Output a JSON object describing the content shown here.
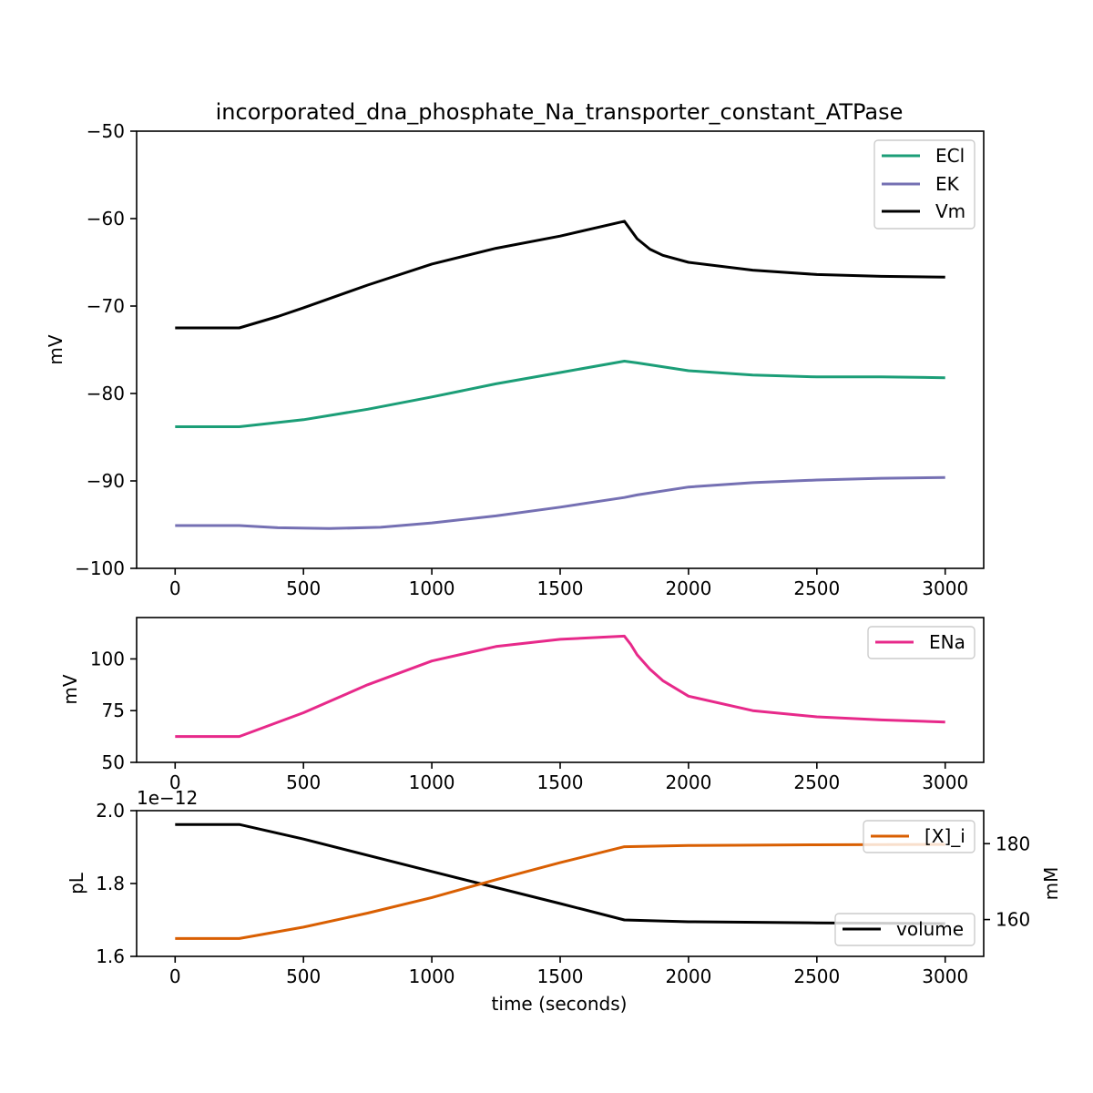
{
  "chart_data": [
    {
      "type": "line",
      "title": "incorporated_dna_phosphate_Na_transporter_constant_ATPase",
      "xlabel": "",
      "ylabel": "mV",
      "xlim": [
        -150,
        3150
      ],
      "ylim": [
        -100,
        -50
      ],
      "xticks": [
        0,
        500,
        1000,
        1500,
        2000,
        2500,
        3000
      ],
      "yticks": [
        -100,
        -90,
        -80,
        -70,
        -60,
        -50
      ],
      "ytick_labels": [
        "−100",
        "−90",
        "−80",
        "−70",
        "−60",
        "−50"
      ],
      "legend": "top-right",
      "series": [
        {
          "name": "ECl",
          "color": "#1b9e77",
          "x": [
            0,
            250,
            500,
            750,
            1000,
            1250,
            1500,
            1750,
            1800,
            2000,
            2250,
            2500,
            2750,
            3000
          ],
          "y": [
            -83.8,
            -83.8,
            -83.0,
            -81.8,
            -80.4,
            -78.9,
            -77.6,
            -76.3,
            -76.5,
            -77.4,
            -77.9,
            -78.1,
            -78.1,
            -78.2
          ]
        },
        {
          "name": "EK",
          "color": "#7570b3",
          "x": [
            0,
            250,
            400,
            600,
            800,
            1000,
            1250,
            1500,
            1750,
            1800,
            2000,
            2250,
            2500,
            2750,
            3000
          ],
          "y": [
            -95.1,
            -95.1,
            -95.35,
            -95.45,
            -95.3,
            -94.8,
            -94.0,
            -93.0,
            -91.9,
            -91.6,
            -90.7,
            -90.2,
            -89.9,
            -89.7,
            -89.6
          ]
        },
        {
          "name": "Vm",
          "color": "#000000",
          "x": [
            0,
            250,
            400,
            500,
            750,
            1000,
            1250,
            1500,
            1750,
            1775,
            1800,
            1850,
            1900,
            2000,
            2250,
            2500,
            2750,
            3000
          ],
          "y": [
            -72.5,
            -72.5,
            -71.2,
            -70.2,
            -67.6,
            -65.2,
            -63.4,
            -62.0,
            -60.3,
            -61.3,
            -62.3,
            -63.5,
            -64.2,
            -65.0,
            -65.9,
            -66.4,
            -66.6,
            -66.7
          ]
        }
      ]
    },
    {
      "type": "line",
      "title": "",
      "xlabel": "",
      "ylabel": "mV",
      "xlim": [
        -150,
        3150
      ],
      "ylim": [
        50,
        120
      ],
      "xticks": [
        0,
        500,
        1000,
        1500,
        2000,
        2500,
        3000
      ],
      "yticks": [
        50,
        75,
        100
      ],
      "ytick_labels": [
        "50",
        "75",
        "100"
      ],
      "legend": "top-right",
      "series": [
        {
          "name": "ENa",
          "color": "#e7298a",
          "x": [
            0,
            250,
            500,
            750,
            1000,
            1250,
            1500,
            1750,
            1775,
            1800,
            1850,
            1900,
            2000,
            2250,
            2500,
            2750,
            3000
          ],
          "y": [
            62.5,
            62.5,
            74.0,
            87.5,
            99.0,
            106.0,
            109.5,
            111.0,
            107.0,
            102.0,
            95.0,
            89.5,
            82.0,
            75.0,
            72.0,
            70.5,
            69.5
          ]
        }
      ]
    },
    {
      "type": "line",
      "title": "",
      "xlabel": "time (seconds)",
      "ylabel": "pL",
      "y2label": "mM",
      "offset_text": "1e−12",
      "xlim": [
        -150,
        3150
      ],
      "ylim": [
        1.6,
        2.0
      ],
      "y2lim": [
        150.3,
        188.7
      ],
      "xticks": [
        0,
        500,
        1000,
        1500,
        2000,
        2500,
        3000
      ],
      "yticks": [
        1.6,
        1.8,
        2.0
      ],
      "ytick_labels": [
        "1.6",
        "1.8",
        "2.0"
      ],
      "y2ticks": [
        160,
        180
      ],
      "y2tick_labels": [
        "160",
        "180"
      ],
      "legend": "top-right",
      "legend2": "bottom-right",
      "series": [
        {
          "name": "volume",
          "axis": "left",
          "color": "#000000",
          "x": [
            0,
            250,
            500,
            1000,
            1500,
            1750,
            2000,
            2500,
            3000
          ],
          "y": [
            1.962,
            1.962,
            1.922,
            1.833,
            1.745,
            1.7,
            1.695,
            1.692,
            1.69
          ]
        },
        {
          "name": "[X]_i",
          "axis": "right",
          "color": "#d95f02",
          "x": [
            0,
            250,
            500,
            750,
            1000,
            1250,
            1500,
            1750,
            2000,
            2500,
            3000
          ],
          "y": [
            155.0,
            155.0,
            158.0,
            161.7,
            165.8,
            170.5,
            175.0,
            179.2,
            179.5,
            179.7,
            179.8
          ]
        }
      ]
    }
  ]
}
